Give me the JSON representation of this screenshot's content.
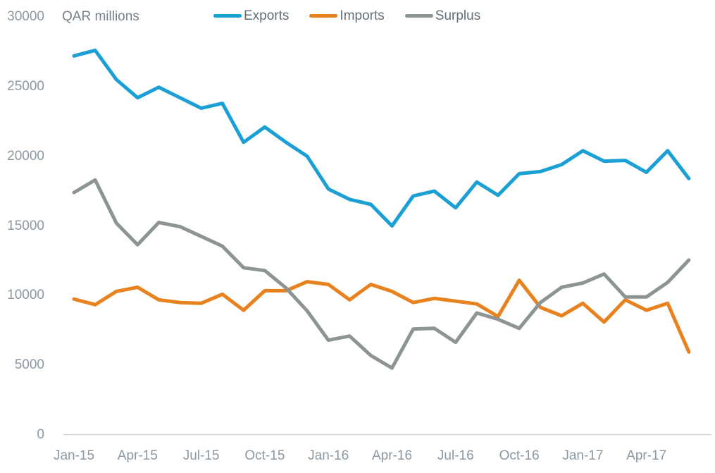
{
  "chart_data": {
    "type": "line",
    "unit_label": "QAR millions",
    "grid": false,
    "legend_position": "top",
    "ylim": [
      0,
      30000
    ],
    "y_ticks": [
      0,
      5000,
      10000,
      15000,
      20000,
      25000,
      30000
    ],
    "x": [
      "Jan-15",
      "Feb-15",
      "Mar-15",
      "Apr-15",
      "May-15",
      "Jun-15",
      "Jul-15",
      "Aug-15",
      "Sep-15",
      "Oct-15",
      "Nov-15",
      "Dec-15",
      "Jan-16",
      "Feb-16",
      "Mar-16",
      "Apr-16",
      "May-16",
      "Jun-16",
      "Jul-16",
      "Aug-16",
      "Sep-16",
      "Oct-16",
      "Nov-16",
      "Dec-16",
      "Jan-17",
      "Feb-17",
      "Mar-17",
      "Apr-17",
      "May-17",
      "Jun-17"
    ],
    "x_tick_labels": [
      "Jan-15",
      "Apr-15",
      "Jul-15",
      "Oct-15",
      "Jan-16",
      "Apr-16",
      "Jul-16",
      "Oct-16",
      "Jan-17",
      "Apr-17"
    ],
    "series": [
      {
        "name": "Exports",
        "color": "#1aa0d5",
        "values": [
          27200,
          27600,
          25500,
          24200,
          24950,
          24200,
          23450,
          23800,
          21000,
          22100,
          21000,
          20000,
          17650,
          16900,
          16550,
          15000,
          17150,
          17500,
          16300,
          18150,
          17200,
          18750,
          18900,
          19400,
          20400,
          19650,
          19700,
          18850,
          20400,
          18400
        ]
      },
      {
        "name": "Imports",
        "color": "#e8821e",
        "values": [
          9750,
          9350,
          10300,
          10600,
          9700,
          9500,
          9450,
          10100,
          8950,
          10350,
          10350,
          11000,
          10800,
          9700,
          10800,
          10300,
          9500,
          9800,
          9600,
          9400,
          8500,
          11100,
          9150,
          8550,
          9450,
          8100,
          9700,
          8950,
          9450,
          5950
        ]
      },
      {
        "name": "Surplus",
        "color": "#8d9494",
        "values": [
          17400,
          18300,
          15200,
          13650,
          15250,
          14950,
          14250,
          13550,
          12000,
          11800,
          10550,
          8900,
          6800,
          7100,
          5700,
          4800,
          7600,
          7650,
          6650,
          8750,
          8300,
          7650,
          9500,
          10600,
          10900,
          11550,
          9900,
          9900,
          10950,
          12550
        ]
      }
    ],
    "axis_line_color": "#cdd2d5",
    "tick_label_color": "#8c98a1",
    "legend_text_color": "#636e76"
  }
}
